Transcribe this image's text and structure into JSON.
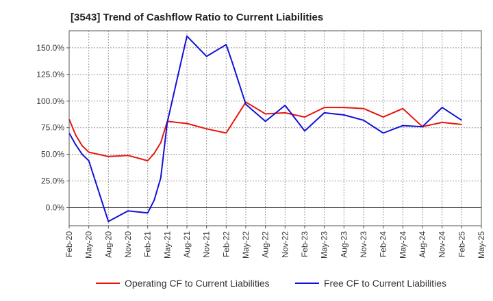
{
  "chart_data": {
    "type": "line",
    "title": "[3543]  Trend of Cashflow Ratio to Current Liabilities",
    "xlabel": "",
    "ylabel": "",
    "y_unit": "%",
    "ylim": [
      -17,
      166
    ],
    "yticks": [
      0,
      25,
      50,
      75,
      100,
      125,
      150
    ],
    "ytick_labels": [
      "0.0%",
      "25.0%",
      "50.0%",
      "75.0%",
      "100.0%",
      "125.0%",
      "150.0%"
    ],
    "x_start": "2020-02",
    "x_end": "2025-05",
    "xtick_labels": [
      "Feb-20",
      "May-20",
      "Aug-20",
      "Nov-20",
      "Feb-21",
      "May-21",
      "Aug-21",
      "Nov-21",
      "Feb-22",
      "May-22",
      "Aug-22",
      "Nov-22",
      "Feb-23",
      "May-23",
      "Aug-23",
      "Nov-23",
      "Feb-24",
      "May-24",
      "Aug-24",
      "Nov-24",
      "Feb-25",
      "May-25"
    ],
    "grid": true,
    "legend_position": "bottom",
    "series": [
      {
        "name": "Operating CF to Current Liabilities",
        "color": "#e8140c",
        "points": [
          [
            "2020-02",
            83
          ],
          [
            "2020-03",
            68
          ],
          [
            "2020-04",
            58
          ],
          [
            "2020-05",
            52
          ],
          [
            "2020-08",
            48
          ],
          [
            "2020-11",
            49
          ],
          [
            "2021-02",
            44
          ],
          [
            "2021-03",
            51
          ],
          [
            "2021-04",
            61
          ],
          [
            "2021-05",
            81
          ],
          [
            "2021-08",
            79
          ],
          [
            "2021-11",
            74
          ],
          [
            "2022-02",
            70
          ],
          [
            "2022-05",
            99
          ],
          [
            "2022-08",
            88
          ],
          [
            "2022-11",
            89
          ],
          [
            "2023-02",
            85
          ],
          [
            "2023-05",
            94
          ],
          [
            "2023-08",
            94
          ],
          [
            "2023-11",
            93
          ],
          [
            "2024-02",
            85
          ],
          [
            "2024-05",
            93
          ],
          [
            "2024-08",
            76
          ],
          [
            "2024-11",
            80
          ],
          [
            "2025-02",
            78
          ]
        ]
      },
      {
        "name": "Free CF to Current Liabilities",
        "color": "#1010d8",
        "points": [
          [
            "2020-02",
            70
          ],
          [
            "2020-03",
            59
          ],
          [
            "2020-04",
            50
          ],
          [
            "2020-05",
            44
          ],
          [
            "2020-08",
            -13
          ],
          [
            "2020-11",
            -3
          ],
          [
            "2021-02",
            -5
          ],
          [
            "2021-03",
            7
          ],
          [
            "2021-04",
            28
          ],
          [
            "2021-05",
            80
          ],
          [
            "2021-08",
            161
          ],
          [
            "2021-11",
            142
          ],
          [
            "2022-02",
            153
          ],
          [
            "2022-03",
            135
          ],
          [
            "2022-05",
            97
          ],
          [
            "2022-08",
            81
          ],
          [
            "2022-11",
            96
          ],
          [
            "2023-02",
            72
          ],
          [
            "2023-05",
            89
          ],
          [
            "2023-08",
            87
          ],
          [
            "2023-11",
            82
          ],
          [
            "2024-02",
            70
          ],
          [
            "2024-05",
            77
          ],
          [
            "2024-08",
            76
          ],
          [
            "2024-11",
            94
          ],
          [
            "2025-02",
            82
          ]
        ]
      }
    ]
  }
}
